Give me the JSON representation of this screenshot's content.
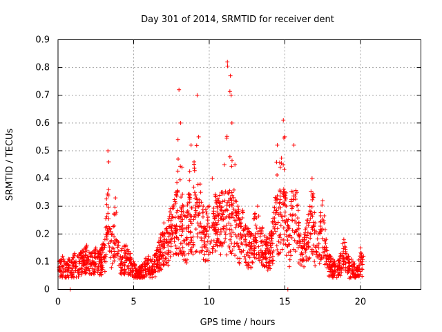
{
  "chart_data": {
    "type": "scatter",
    "title": "Day 301 of 2014, SRMTID for receiver dent",
    "xlabel": "GPS time / hours",
    "ylabel": "SRMTID / TECUs",
    "xlim": [
      0,
      24
    ],
    "ylim": [
      0,
      0.9
    ],
    "xticks": [
      0,
      5,
      10,
      15,
      20
    ],
    "yticks": [
      0,
      0.1,
      0.2,
      0.3,
      0.4,
      0.5,
      0.6,
      0.7,
      0.8,
      0.9
    ],
    "grid": true,
    "marker": "+",
    "color": "#ff0000",
    "envelope_description": "dense cloud of points between 0 and 20.2 hours",
    "series": [
      {
        "name": "SRMTID",
        "x": [
          0.1,
          0.3,
          0.5,
          0.7,
          0.9,
          1.1,
          1.3,
          1.6,
          1.9,
          2.2,
          2.5,
          2.8,
          3.1,
          3.3,
          3.35,
          3.4,
          3.6,
          3.8,
          4.0,
          4.2,
          4.5,
          4.8,
          5.0,
          5.2,
          5.4,
          5.6,
          5.8,
          6.0,
          6.2,
          6.5,
          6.8,
          7.0,
          7.2,
          7.4,
          7.6,
          7.8,
          8.0,
          8.1,
          8.3,
          8.5,
          8.8,
          9.0,
          9.2,
          9.3,
          9.4,
          9.6,
          9.8,
          10.0,
          10.2,
          10.5,
          10.8,
          11.0,
          11.2,
          11.4,
          11.45,
          11.5,
          11.7,
          11.9,
          12.0,
          12.2,
          12.5,
          12.8,
          13.0,
          13.2,
          13.5,
          13.8,
          14.0,
          14.2,
          14.5,
          14.7,
          14.9,
          15.0,
          15.1,
          15.3,
          15.6,
          15.8,
          16.0,
          16.2,
          16.5,
          16.8,
          17.0,
          17.2,
          17.5,
          17.8,
          18.0,
          18.3,
          18.6,
          18.9,
          19.2,
          19.5,
          19.8,
          20.0,
          20.2
        ],
        "y": [
          0.1,
          0.12,
          0.09,
          0.11,
          0.1,
          0.13,
          0.12,
          0.14,
          0.16,
          0.13,
          0.15,
          0.14,
          0.18,
          0.5,
          0.46,
          0.22,
          0.2,
          0.33,
          0.17,
          0.14,
          0.16,
          0.13,
          0.1,
          0.07,
          0.08,
          0.09,
          0.11,
          0.12,
          0.1,
          0.14,
          0.2,
          0.24,
          0.22,
          0.28,
          0.3,
          0.35,
          0.72,
          0.6,
          0.3,
          0.26,
          0.52,
          0.46,
          0.7,
          0.55,
          0.38,
          0.3,
          0.28,
          0.3,
          0.4,
          0.32,
          0.35,
          0.45,
          0.82,
          0.77,
          0.7,
          0.6,
          0.45,
          0.3,
          0.25,
          0.28,
          0.22,
          0.2,
          0.27,
          0.3,
          0.22,
          0.18,
          0.2,
          0.24,
          0.52,
          0.44,
          0.61,
          0.55,
          0.3,
          0.22,
          0.52,
          0.35,
          0.2,
          0.18,
          0.25,
          0.4,
          0.24,
          0.2,
          0.32,
          0.14,
          0.12,
          0.1,
          0.11,
          0.18,
          0.12,
          0.1,
          0.08,
          0.15,
          0.12
        ]
      }
    ]
  }
}
